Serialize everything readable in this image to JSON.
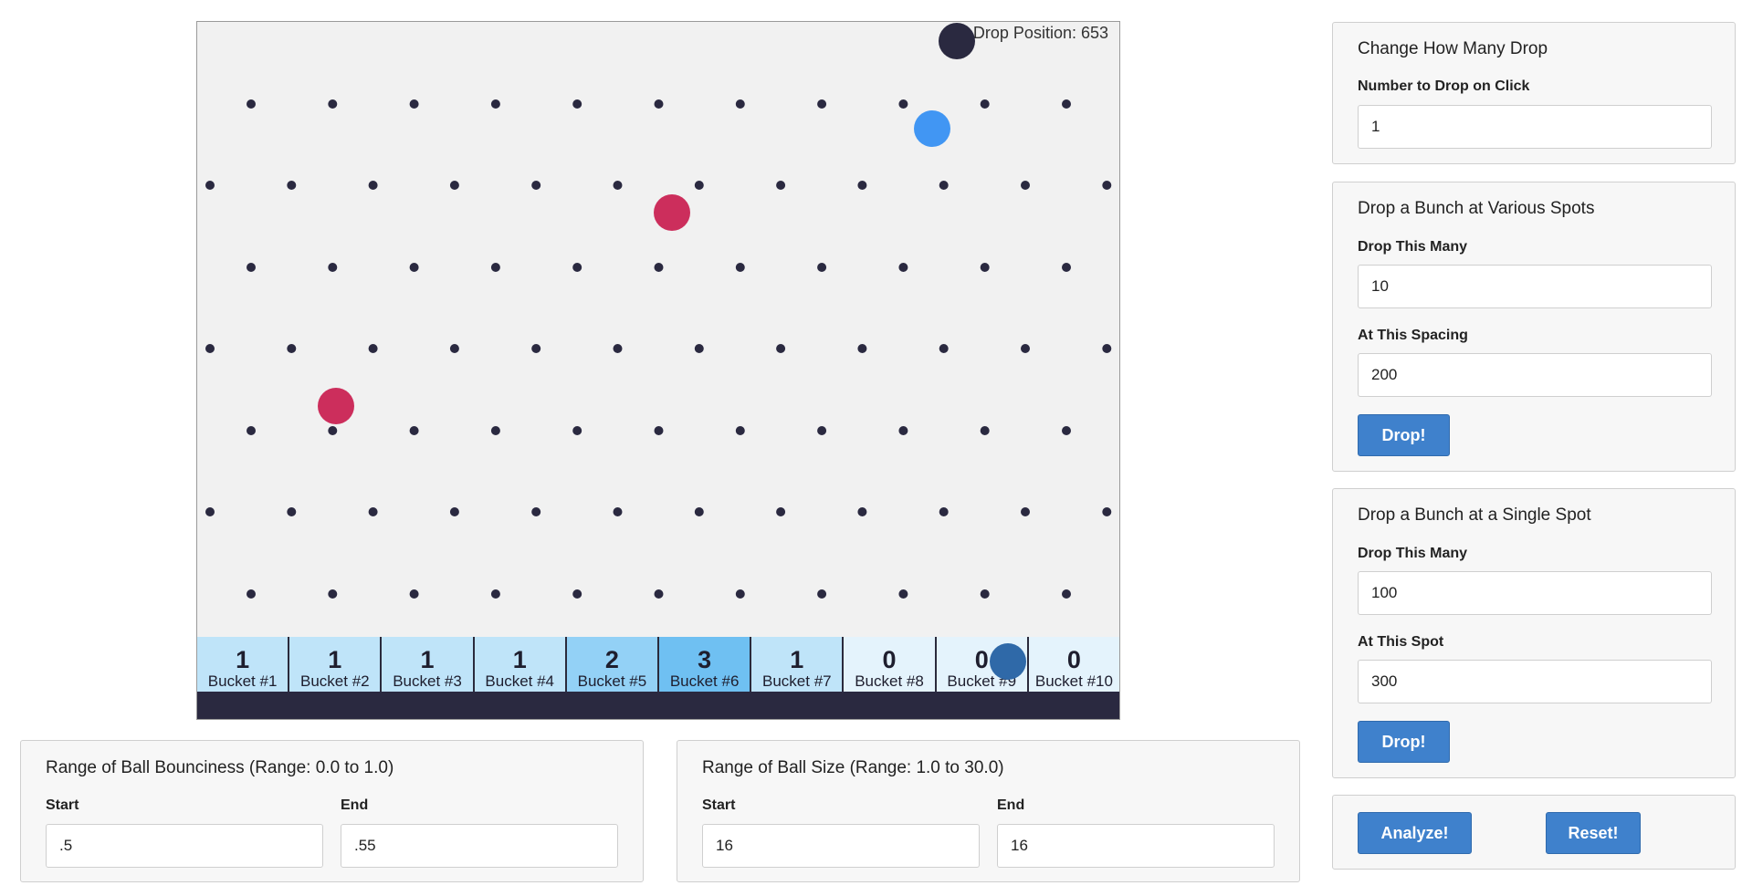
{
  "board": {
    "drop_position_label": "Drop Position: 653",
    "buckets": [
      {
        "count": "1",
        "label": "Bucket #1"
      },
      {
        "count": "1",
        "label": "Bucket #2"
      },
      {
        "count": "1",
        "label": "Bucket #3"
      },
      {
        "count": "1",
        "label": "Bucket #4"
      },
      {
        "count": "2",
        "label": "Bucket #5"
      },
      {
        "count": "3",
        "label": "Bucket #6"
      },
      {
        "count": "1",
        "label": "Bucket #7"
      },
      {
        "count": "0",
        "label": "Bucket #8"
      },
      {
        "count": "0",
        "label": "Bucket #9"
      },
      {
        "count": "0",
        "label": "Bucket #10"
      }
    ],
    "colors": {
      "board_bg": "#f1f1f1",
      "peg": "#2a2940",
      "floor": "#2a2940",
      "ball_dark": "#2a2940",
      "ball_blue": "#4196f3",
      "ball_red": "#cc2e5c",
      "ball_steel": "#2f69a8",
      "bucket_shades": [
        "#e4f3fc",
        "#bfe4f9",
        "#93d1f6",
        "#6fc0f2"
      ]
    }
  },
  "change_how_many": {
    "title": "Change How Many Drop",
    "label": "Number to Drop on Click",
    "value": "1"
  },
  "various_spots": {
    "title": "Drop a Bunch at Various Spots",
    "count_label": "Drop This Many",
    "count_value": "10",
    "spacing_label": "At This Spacing",
    "spacing_value": "200",
    "button": "Drop!"
  },
  "single_spot": {
    "title": "Drop a Bunch at a Single Spot",
    "count_label": "Drop This Many",
    "count_value": "100",
    "spot_label": "At This Spot",
    "spot_value": "300",
    "button": "Drop!"
  },
  "actions": {
    "analyze": "Analyze!",
    "reset": "Reset!"
  },
  "bounciness": {
    "title": "Range of Ball Bounciness (Range: 0.0 to 1.0)",
    "start_label": "Start",
    "start_value": ".5",
    "end_label": "End",
    "end_value": ".55"
  },
  "ball_size": {
    "title": "Range of Ball Size (Range: 1.0 to 30.0)",
    "start_label": "Start",
    "start_value": "16",
    "end_label": "End",
    "end_value": "16"
  }
}
